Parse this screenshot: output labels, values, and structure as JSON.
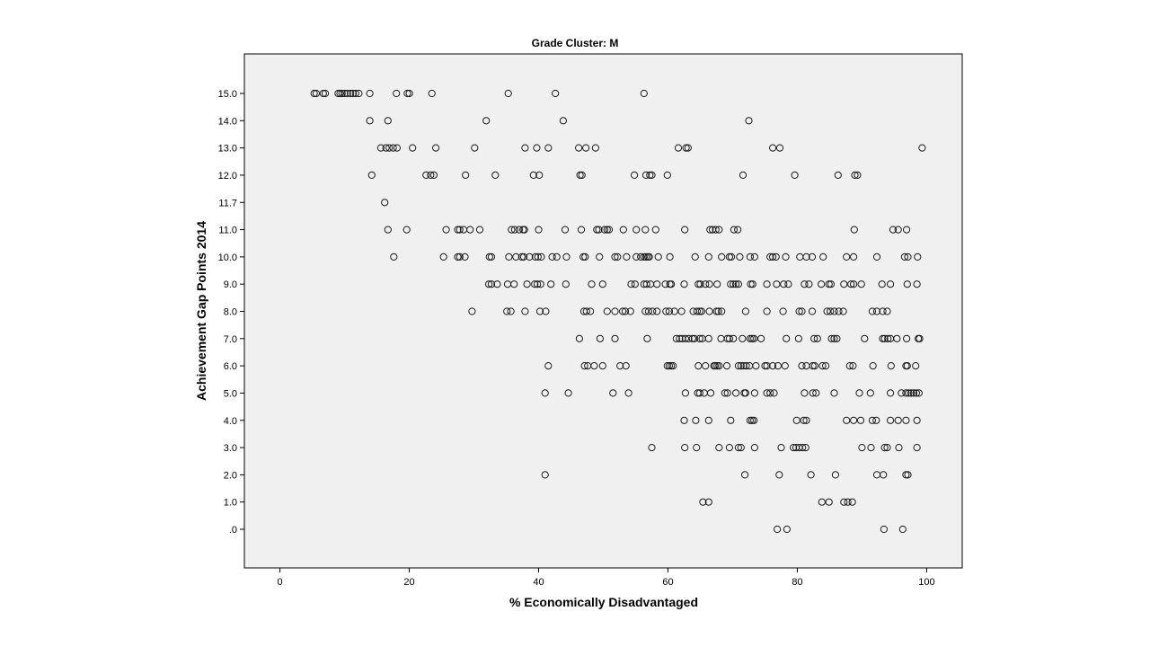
{
  "chart_data": {
    "type": "scatter",
    "title": "Grade Cluster: M",
    "xlabel": "% Economically Disadvantaged",
    "ylabel": "Achievement Gap Points 2014",
    "xlim": [
      -5.5,
      105.5
    ],
    "x_ticks": [
      0,
      20,
      40,
      60,
      80,
      100
    ],
    "x_tick_labels": [
      "0",
      "20",
      "40",
      "60",
      "80",
      "100"
    ],
    "y_categories": [
      "15.0",
      "14.0",
      "13.0",
      "12.0",
      "11.7",
      "11.0",
      "10.0",
      "9.0",
      "8.0",
      "7.0",
      "6.0",
      "5.0",
      "4.0",
      "3.0",
      "2.0",
      "1.0",
      ".0"
    ],
    "marker": "open-circle",
    "grid": false,
    "legend": "none",
    "series": [
      {
        "points": {
          "15.0": [
            5.3,
            5.6,
            6.7,
            7.0,
            9.0,
            9.3,
            9.6,
            10.0,
            10.4,
            10.9,
            11.3,
            11.7,
            12.2,
            13.9,
            18.0,
            19.7,
            20.0,
            23.5,
            35.3,
            42.6,
            56.3
          ],
          "14.0": [
            13.9,
            16.7,
            31.9,
            43.8,
            72.5
          ],
          "13.0": [
            15.6,
            16.4,
            16.9,
            17.5,
            18.1,
            20.5,
            24.1,
            30.1,
            37.9,
            39.7,
            41.5,
            46.2,
            47.3,
            48.8,
            61.6,
            62.8,
            63.1,
            76.2,
            77.3,
            99.3
          ],
          "12.0": [
            14.2,
            22.6,
            23.3,
            23.8,
            28.7,
            33.3,
            39.2,
            40.1,
            46.4,
            46.7,
            54.8,
            56.6,
            57.2,
            57.5,
            59.9,
            71.6,
            79.6,
            86.3,
            88.9,
            89.3
          ],
          "11.7": [
            16.2
          ],
          "11.0": [
            16.7,
            19.6,
            25.7,
            27.5,
            27.8,
            28.4,
            29.4,
            30.9,
            35.8,
            36.3,
            37.0,
            37.6,
            37.8,
            40.0,
            44.1,
            46.6,
            49.0,
            49.3,
            50.2,
            50.6,
            50.9,
            53.1,
            55.1,
            56.5,
            58.1,
            62.6,
            66.5,
            66.9,
            67.4,
            67.9,
            70.2,
            70.8,
            88.8,
            94.8,
            95.6,
            96.9
          ],
          "10.0": [
            17.6,
            25.3,
            27.5,
            27.8,
            28.6,
            32.4,
            32.7,
            35.4,
            36.5,
            37.4,
            37.7,
            38.6,
            39.5,
            39.9,
            40.4,
            42.1,
            42.8,
            44.3,
            46.9,
            47.2,
            49.4,
            51.8,
            52.2,
            53.6,
            55.1,
            55.8,
            56.3,
            56.6,
            56.9,
            57.1,
            58.5,
            60.3,
            64.2,
            66.3,
            68.3,
            69.5,
            69.8,
            71.1,
            72.7,
            73.4,
            75.8,
            76.2,
            76.7,
            78.2,
            80.4,
            81.4,
            82.3,
            84.0,
            87.6,
            88.7,
            92.3,
            96.6,
            97.1,
            98.6
          ],
          "9.0": [
            32.3,
            32.7,
            33.6,
            35.2,
            36.2,
            38.2,
            39.4,
            39.8,
            40.3,
            41.9,
            44.2,
            48.2,
            49.9,
            54.3,
            54.9,
            56.3,
            56.7,
            57.3,
            58.3,
            59.6,
            60.3,
            60.5,
            62.5,
            64.7,
            65.0,
            65.8,
            66.4,
            67.6,
            69.7,
            70.1,
            70.5,
            70.9,
            72.8,
            73.1,
            75.3,
            76.8,
            77.9,
            78.6,
            81.1,
            81.8,
            83.7,
            84.9,
            85.2,
            87.2,
            88.3,
            88.7,
            89.9,
            93.1,
            94.4,
            97.0,
            98.5
          ],
          "8.0": [
            29.7,
            35.1,
            35.7,
            37.9,
            40.2,
            41.1,
            47.0,
            47.4,
            48.0,
            50.6,
            51.8,
            53.0,
            53.4,
            54.2,
            56.5,
            57.0,
            57.6,
            58.3,
            59.7,
            60.2,
            61.0,
            62.1,
            63.9,
            64.5,
            64.9,
            65.2,
            66.4,
            67.5,
            67.8,
            68.3,
            72.0,
            75.3,
            77.8,
            80.3,
            80.7,
            82.3,
            84.6,
            85.1,
            85.7,
            86.4,
            87.1,
            91.6,
            92.3,
            93.2,
            93.9
          ],
          "7.0": [
            46.3,
            49.5,
            51.8,
            56.8,
            61.3,
            61.8,
            62.2,
            62.7,
            63.2,
            63.8,
            64.1,
            64.9,
            65.3,
            66.3,
            68.2,
            69.2,
            69.5,
            70.1,
            71.5,
            72.7,
            73.0,
            73.3,
            74.4,
            78.3,
            80.2,
            82.6,
            83.1,
            85.3,
            85.7,
            86.1,
            90.4,
            93.2,
            93.5,
            94.0,
            94.4,
            95.4,
            96.9,
            98.7,
            98.9
          ],
          "6.0": [
            41.5,
            47.1,
            47.6,
            48.6,
            49.9,
            52.6,
            53.5,
            59.9,
            60.2,
            60.5,
            60.8,
            64.7,
            65.8,
            67.1,
            67.3,
            67.6,
            67.9,
            69.1,
            70.9,
            71.3,
            71.7,
            72.1,
            72.6,
            73.6,
            75.0,
            75.3,
            76.2,
            77.0,
            78.1,
            80.7,
            81.4,
            82.4,
            82.7,
            83.9,
            84.4,
            88.1,
            88.6,
            91.7,
            94.5,
            96.8,
            97.0,
            98.3
          ],
          "5.0": [
            41.0,
            44.6,
            51.5,
            53.9,
            62.7,
            64.6,
            64.9,
            65.6,
            66.6,
            68.8,
            69.2,
            70.5,
            71.8,
            72.0,
            73.4,
            75.3,
            75.8,
            76.4,
            81.1,
            82.4,
            82.9,
            85.7,
            89.6,
            91.3,
            94.4,
            96.1,
            96.8,
            97.2,
            97.6,
            98.0,
            98.4,
            98.8
          ],
          "4.0": [
            62.5,
            64.3,
            66.3,
            69.7,
            72.7,
            73.0,
            73.3,
            79.9,
            81.0,
            81.4,
            87.6,
            88.7,
            89.8,
            91.6,
            92.2,
            94.4,
            95.6,
            96.8,
            98.5
          ],
          "3.0": [
            57.5,
            62.6,
            64.4,
            67.9,
            69.5,
            70.9,
            71.3,
            73.4,
            77.5,
            79.4,
            79.8,
            80.3,
            80.8,
            81.3,
            90.0,
            91.4,
            93.5,
            93.9,
            95.7,
            98.5
          ],
          "2.0": [
            41.0,
            71.9,
            77.2,
            82.1,
            85.9,
            92.3,
            93.3,
            96.8,
            97.1
          ],
          "1.0": [
            65.4,
            66.3,
            83.8,
            84.9,
            87.2,
            87.8,
            88.5
          ],
          ".0": [
            76.9,
            78.4,
            93.4,
            96.3
          ]
        }
      }
    ]
  }
}
